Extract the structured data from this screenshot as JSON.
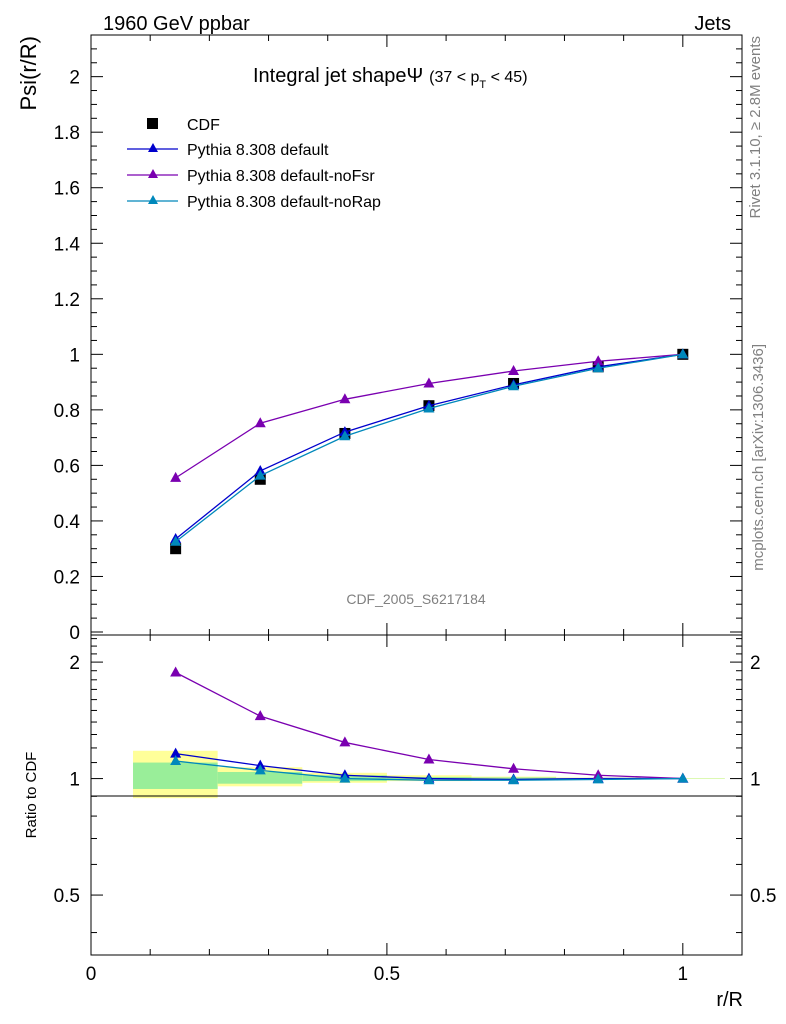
{
  "header": {
    "left": "1960 GeV ppbar",
    "right": "Jets"
  },
  "side_labels": {
    "rivet": "Rivet 3.1.10, ≥ 2.8M events",
    "mcplots": "mcplots.cern.ch [arXiv:1306.3436]"
  },
  "watermark": "CDF_2005_S6217184",
  "chart_data": [
    {
      "type": "line",
      "title": "Integral jet shapeΨ",
      "title_cut": {
        "prefix": "(37 < p",
        "sub": "T",
        "suffix": " < 45)"
      },
      "xlabel": "r/R",
      "ylabel": "Psi(r/R)",
      "xlim": [
        0,
        1.1
      ],
      "ylim": [
        0,
        2.15
      ],
      "yticks": [
        0,
        0.2,
        0.4,
        0.6,
        0.8,
        1,
        1.2,
        1.4,
        1.6,
        1.8,
        2
      ],
      "ytick_labels": [
        "0",
        "0.2",
        "0.4",
        "0.6",
        "0.8",
        "1",
        "1.2",
        "1.4",
        "1.6",
        "1.8",
        "2"
      ],
      "legend_position": "top-left",
      "x": [
        0.143,
        0.286,
        0.429,
        0.571,
        0.714,
        0.857,
        1.0
      ],
      "series": [
        {
          "name": "CDF",
          "marker": "square",
          "color": "#000000",
          "line": false,
          "values": [
            0.3,
            0.55,
            0.715,
            0.815,
            0.895,
            0.955,
            1.0
          ]
        },
        {
          "name": "Pythia 8.308 default",
          "marker": "triangle",
          "color": "#0000cc",
          "line": true,
          "values": [
            0.335,
            0.58,
            0.72,
            0.815,
            0.89,
            0.955,
            1.0
          ]
        },
        {
          "name": "Pythia 8.308 default-noFsr",
          "marker": "triangle",
          "color": "#7a00b0",
          "line": true,
          "values": [
            0.555,
            0.752,
            0.838,
            0.895,
            0.94,
            0.975,
            1.0
          ]
        },
        {
          "name": "Pythia 8.308 default-noRap",
          "marker": "triangle",
          "color": "#0088bb",
          "line": true,
          "values": [
            0.325,
            0.563,
            0.705,
            0.805,
            0.885,
            0.95,
            1.0
          ]
        }
      ]
    },
    {
      "type": "line",
      "xlabel": "r/R",
      "ylabel": "Ratio to CDF",
      "xlim": [
        0,
        1.1
      ],
      "ylim": [
        0.35,
        2.35
      ],
      "yticks": [
        0.5,
        1,
        2
      ],
      "ytick_labels": [
        "0.5",
        "1",
        "2"
      ],
      "xticks": [
        0,
        0.5,
        1
      ],
      "xtick_labels": [
        "0",
        "0.5",
        "1"
      ],
      "reference_line": 1,
      "x": [
        0.143,
        0.286,
        0.429,
        0.571,
        0.714,
        0.857,
        1.0
      ],
      "uncertainty_bands": [
        {
          "x0": 0.071,
          "x1": 0.214,
          "stat": [
            0.94,
            1.1
          ],
          "total": [
            0.89,
            1.18
          ]
        },
        {
          "x0": 0.214,
          "x1": 0.357,
          "stat": [
            0.97,
            1.04
          ],
          "total": [
            0.955,
            1.07
          ]
        },
        {
          "x0": 0.357,
          "x1": 0.5,
          "stat": [
            0.985,
            1.02
          ],
          "total": [
            0.975,
            1.035
          ]
        },
        {
          "x0": 0.5,
          "x1": 0.643,
          "stat": [
            0.99,
            1.01
          ],
          "total": [
            0.985,
            1.02
          ]
        },
        {
          "x0": 0.643,
          "x1": 0.786,
          "stat": [
            0.993,
            1.007
          ],
          "total": [
            0.99,
            1.012
          ]
        },
        {
          "x0": 0.786,
          "x1": 0.929,
          "stat": [
            0.996,
            1.004
          ],
          "total": [
            0.994,
            1.006
          ]
        },
        {
          "x0": 0.929,
          "x1": 1.071,
          "stat": [
            0.999,
            1.001
          ],
          "total": [
            0.998,
            1.002
          ]
        }
      ],
      "series": [
        {
          "name": "Pythia 8.308 default",
          "color": "#0000cc",
          "values": [
            1.16,
            1.08,
            1.02,
            1.0,
            0.995,
            1.0,
            1.0
          ]
        },
        {
          "name": "Pythia 8.308 default-noFsr",
          "color": "#7a00b0",
          "values": [
            1.88,
            1.45,
            1.24,
            1.12,
            1.06,
            1.02,
            1.0
          ]
        },
        {
          "name": "Pythia 8.308 default-noRap",
          "color": "#0088bb",
          "values": [
            1.11,
            1.05,
            1.0,
            0.99,
            0.99,
            0.995,
            1.0
          ]
        }
      ]
    }
  ]
}
